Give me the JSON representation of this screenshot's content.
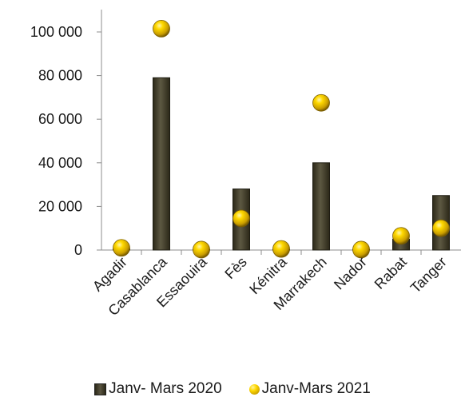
{
  "chart_data": {
    "type": "bar",
    "categories": [
      "Agadir",
      "Casablanca",
      "Essaouira",
      "Fès",
      "Kénitra",
      "Marrakech",
      "Nador",
      "Rabat",
      "Tanger"
    ],
    "series": [
      {
        "name": "Janv- Mars 2020",
        "kind": "bar",
        "values": [
          500,
          79000,
          200,
          28000,
          300,
          40000,
          200,
          5000,
          25000
        ],
        "color": "#4a4733"
      },
      {
        "name": "Janv-Mars 2021",
        "kind": "marker",
        "values": [
          1000,
          101500,
          200,
          14500,
          500,
          67500,
          200,
          6500,
          10000
        ],
        "color": "#f2c200"
      }
    ],
    "ylim": [
      0,
      110000
    ],
    "yticks": [
      0,
      20000,
      40000,
      60000,
      80000,
      100000
    ],
    "ytick_labels": [
      "0",
      "20 000",
      "40 000",
      "60 000",
      "80 000",
      "100 000"
    ],
    "grid": false,
    "legend_position": "bottom"
  }
}
